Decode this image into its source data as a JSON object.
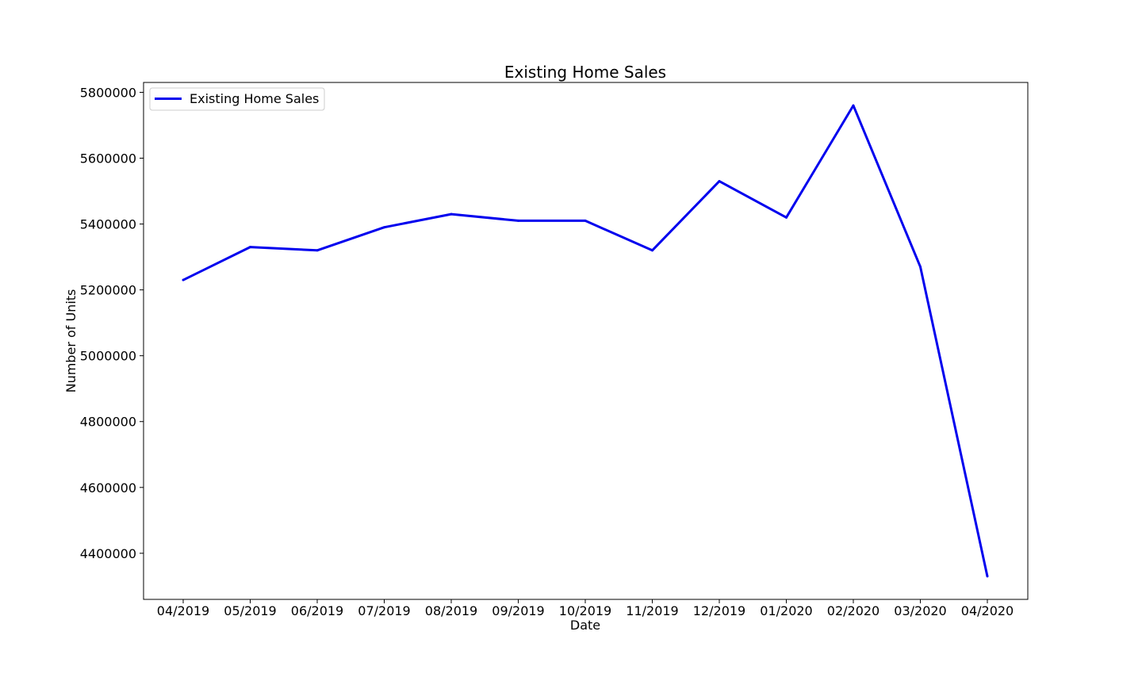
{
  "chart_data": {
    "type": "line",
    "title": "Existing Home Sales",
    "xlabel": "Date",
    "ylabel": "Number of Units",
    "categories": [
      "04/2019",
      "05/2019",
      "06/2019",
      "07/2019",
      "08/2019",
      "09/2019",
      "10/2019",
      "11/2019",
      "12/2019",
      "01/2020",
      "02/2020",
      "03/2020",
      "04/2020"
    ],
    "series": [
      {
        "name": "Existing Home Sales",
        "color": "#0000ee",
        "values": [
          5230000,
          5330000,
          5320000,
          5390000,
          5430000,
          5410000,
          5410000,
          5320000,
          5530000,
          5420000,
          5760000,
          5270000,
          4330000
        ]
      }
    ],
    "ylim": [
      4260000,
      5830000
    ],
    "yticks": [
      "4400000",
      "4600000",
      "4800000",
      "5000000",
      "5200000",
      "5400000",
      "5600000",
      "5800000"
    ],
    "legend_position": "top-left",
    "grid": false
  }
}
